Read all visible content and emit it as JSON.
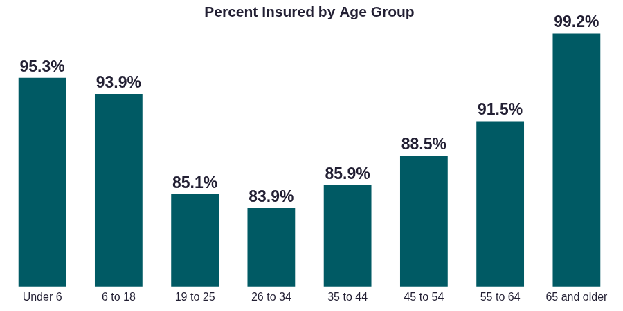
{
  "chart_data": {
    "type": "bar",
    "title": "Percent Insured by Age Group",
    "categories": [
      "Under 6",
      "6 to 18",
      "19 to 25",
      "26 to 34",
      "35 to 44",
      "45 to 54",
      "55 to 64",
      "65 and older"
    ],
    "values": [
      95.3,
      93.9,
      85.1,
      83.9,
      85.9,
      88.5,
      91.5,
      99.2
    ],
    "value_labels": [
      "95.3%",
      "93.9%",
      "85.1%",
      "83.9%",
      "85.9%",
      "88.5%",
      "91.5%",
      "99.2%"
    ],
    "color": "#005a64",
    "ylim": [
      77,
      100
    ],
    "grid": false,
    "data_labels": true,
    "tick_labels": "x"
  }
}
